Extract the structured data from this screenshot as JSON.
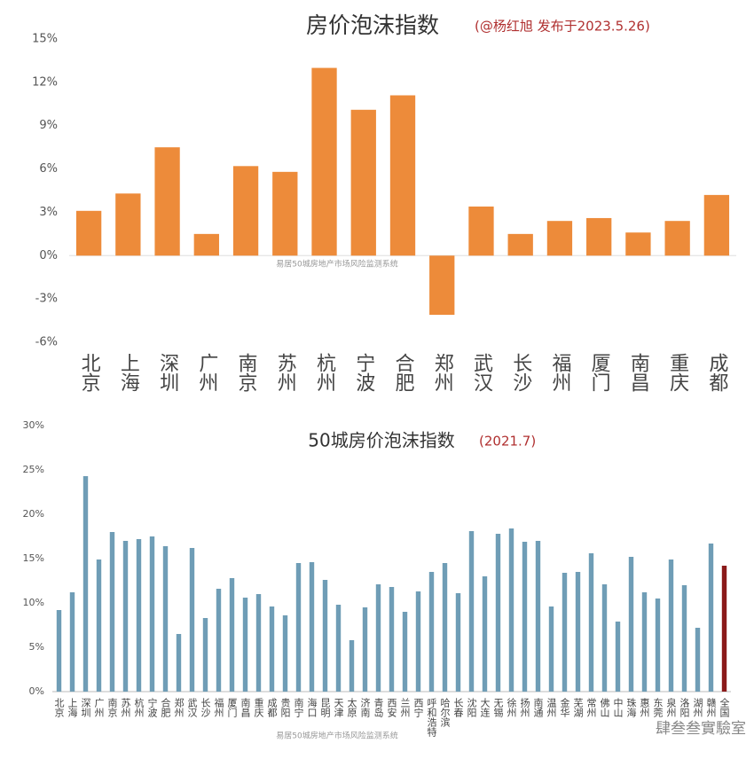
{
  "chart_data": [
    {
      "type": "bar",
      "title": "房价泡沫指数",
      "subtitle": "(@杨红旭 发布于2023.5.26)",
      "watermark": "易居50城房地产市场风险监测系统",
      "categories": [
        "北京",
        "上海",
        "深圳",
        "广州",
        "南京",
        "苏州",
        "杭州",
        "宁波",
        "合肥",
        "郑州",
        "武汉",
        "长沙",
        "福州",
        "厦门",
        "南昌",
        "重庆",
        "成都"
      ],
      "values": [
        3.1,
        4.3,
        7.5,
        1.5,
        6.2,
        5.8,
        13.0,
        10.1,
        11.1,
        -4.1,
        3.4,
        1.5,
        2.4,
        2.6,
        1.6,
        2.4,
        4.2
      ],
      "color": "#ed8b3a",
      "ylim": [
        -6,
        15
      ],
      "yticks": [
        {
          "value": -6,
          "label": "-6%"
        },
        {
          "value": -3,
          "label": "-3%"
        },
        {
          "value": 0,
          "label": "0%"
        },
        {
          "value": 3,
          "label": "3%"
        },
        {
          "value": 6,
          "label": "6%"
        },
        {
          "value": 9,
          "label": "9%"
        },
        {
          "value": 12,
          "label": "12%"
        },
        {
          "value": 15,
          "label": "15%"
        }
      ]
    },
    {
      "type": "bar",
      "title": "50城房价泡沫指数",
      "subtitle": "(2021.7)",
      "watermark": "易居50城房地产市场风险监测系统",
      "categories": [
        "北京",
        "上海",
        "深圳",
        "广州",
        "南京",
        "苏州",
        "杭州",
        "宁波",
        "合肥",
        "郑州",
        "武汉",
        "长沙",
        "福州",
        "厦门",
        "南昌",
        "重庆",
        "成都",
        "贵阳",
        "南宁",
        "海口",
        "昆明",
        "天津",
        "太原",
        "济南",
        "青岛",
        "西安",
        "兰州",
        "西宁",
        "呼和浩特",
        "哈尔滨",
        "长春",
        "沈阳",
        "大连",
        "无锡",
        "徐州",
        "扬州",
        "南通",
        "温州",
        "金华",
        "芜湖",
        "常州",
        "佛山",
        "中山",
        "珠海",
        "惠州",
        "东莞",
        "泉州",
        "洛阳",
        "湖州",
        "赣州",
        "全国"
      ],
      "values": [
        9.2,
        11.2,
        24.3,
        14.9,
        18.0,
        17.0,
        17.2,
        17.5,
        16.4,
        6.5,
        16.2,
        8.3,
        11.6,
        12.8,
        10.6,
        11.0,
        9.6,
        8.6,
        14.5,
        14.6,
        12.6,
        9.8,
        5.8,
        9.5,
        12.1,
        11.8,
        9.0,
        11.3,
        13.5,
        14.5,
        11.1,
        18.1,
        13.0,
        17.8,
        18.4,
        16.9,
        17.0,
        9.6,
        13.4,
        13.5,
        15.6,
        12.1,
        7.9,
        15.2,
        11.2,
        10.5,
        14.9,
        12.0,
        7.2,
        16.7,
        14.2
      ],
      "colors": [
        "#6f9db6",
        "#6f9db6",
        "#6f9db6",
        "#6f9db6",
        "#6f9db6",
        "#6f9db6",
        "#6f9db6",
        "#6f9db6",
        "#6f9db6",
        "#6f9db6",
        "#6f9db6",
        "#6f9db6",
        "#6f9db6",
        "#6f9db6",
        "#6f9db6",
        "#6f9db6",
        "#6f9db6",
        "#6f9db6",
        "#6f9db6",
        "#6f9db6",
        "#6f9db6",
        "#6f9db6",
        "#6f9db6",
        "#6f9db6",
        "#6f9db6",
        "#6f9db6",
        "#6f9db6",
        "#6f9db6",
        "#6f9db6",
        "#6f9db6",
        "#6f9db6",
        "#6f9db6",
        "#6f9db6",
        "#6f9db6",
        "#6f9db6",
        "#6f9db6",
        "#6f9db6",
        "#6f9db6",
        "#6f9db6",
        "#6f9db6",
        "#6f9db6",
        "#6f9db6",
        "#6f9db6",
        "#6f9db6",
        "#6f9db6",
        "#6f9db6",
        "#6f9db6",
        "#6f9db6",
        "#6f9db6",
        "#6f9db6",
        "#8b1a1a"
      ],
      "ylim": [
        0,
        30
      ],
      "yticks": [
        {
          "value": 0,
          "label": "0%"
        },
        {
          "value": 5,
          "label": "5%"
        },
        {
          "value": 10,
          "label": "10%"
        },
        {
          "value": 15,
          "label": "15%"
        },
        {
          "value": 20,
          "label": "20%"
        },
        {
          "value": 25,
          "label": "25%"
        },
        {
          "value": 30,
          "label": "30%"
        }
      ]
    }
  ],
  "credit": "肆叁叁實驗室"
}
